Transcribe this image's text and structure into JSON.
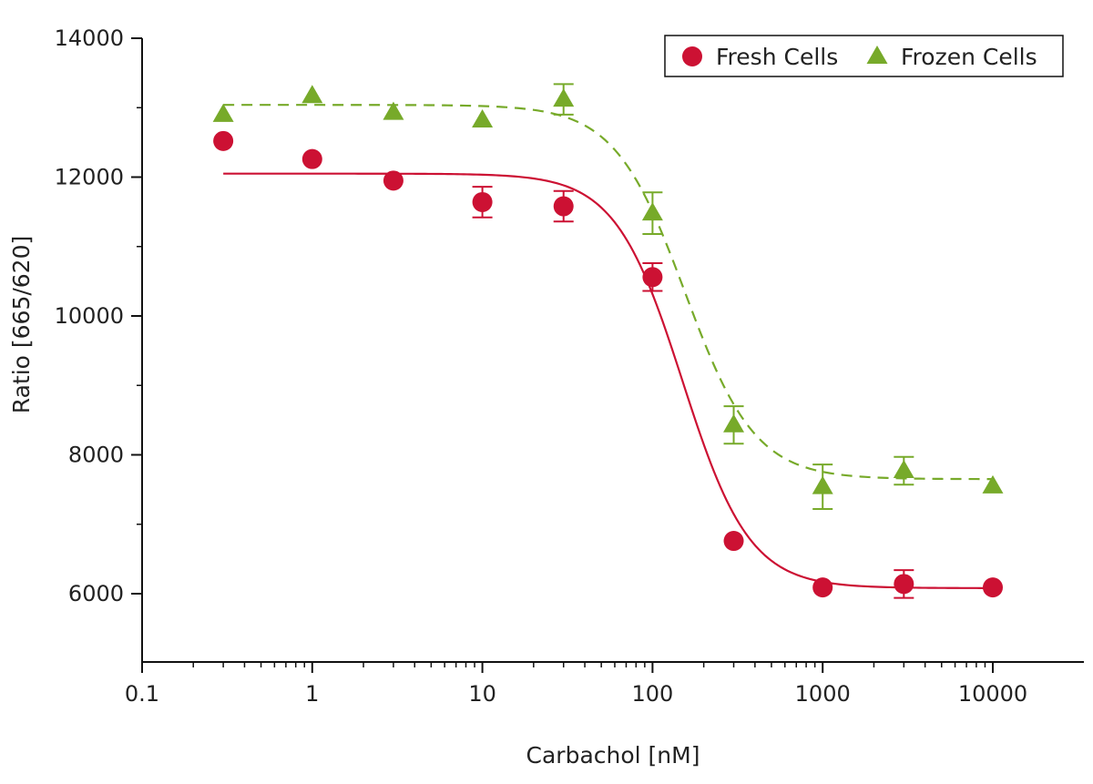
{
  "chart_data": {
    "type": "scatter",
    "xlabel": "Carbachol [nM]",
    "ylabel": "Ratio [665/620]",
    "x_scale": "log",
    "xlim": [
      0.1,
      17000
    ],
    "ylim": [
      5000,
      14000
    ],
    "x_ticks": [
      0.1,
      1,
      10,
      100,
      1000,
      10000
    ],
    "x_tick_labels": [
      "0.1",
      "1",
      "10",
      "100",
      "1000",
      "10000"
    ],
    "y_ticks": [
      6000,
      8000,
      10000,
      12000,
      14000
    ],
    "y_tick_labels": [
      "6000",
      "8000",
      "10000",
      "12000",
      "14000"
    ],
    "grid": false,
    "legend_position": "top-right",
    "series": [
      {
        "name": "Fresh Cells",
        "marker": "circle",
        "color": "#cc1133",
        "line_style": "solid",
        "x": [
          0.3,
          1,
          3,
          10,
          30,
          100,
          300,
          1000,
          3000,
          10000
        ],
        "y": [
          12520,
          12260,
          11950,
          11640,
          11580,
          10560,
          6760,
          6090,
          6140,
          6090
        ],
        "err": [
          0,
          0,
          0,
          220,
          220,
          200,
          0,
          0,
          200,
          0
        ],
        "fit": {
          "top": 12050,
          "bottom": 6080,
          "ec50": 150,
          "hill": 2.2
        }
      },
      {
        "name": "Frozen Cells",
        "marker": "triangle",
        "color": "#77aa2a",
        "line_style": "dashed",
        "x": [
          0.3,
          1,
          3,
          10,
          30,
          100,
          300,
          1000,
          3000,
          10000
        ],
        "y": [
          12900,
          13170,
          12930,
          12820,
          13120,
          11480,
          8430,
          7540,
          7770,
          7550
        ],
        "err": [
          0,
          0,
          0,
          0,
          220,
          300,
          270,
          320,
          200,
          0
        ],
        "fit": {
          "top": 13040,
          "bottom": 7650,
          "ec50": 155,
          "hill": 2.1
        }
      }
    ]
  }
}
